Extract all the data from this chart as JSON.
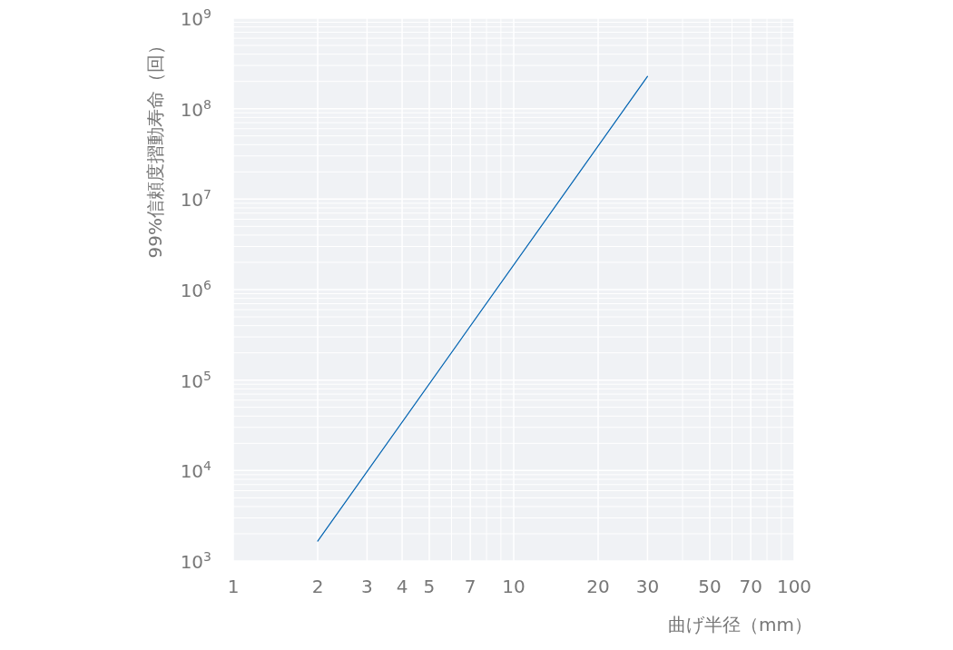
{
  "chart_data": {
    "type": "line",
    "xlabel": "曲げ半径（mm）",
    "ylabel": "99%信頼度摺動寿命（回）",
    "log": "xy",
    "grid": true,
    "marker": "none",
    "line_style": "solid",
    "x": [
      2,
      30
    ],
    "series": [
      {
        "color": "#0063b1",
        "values": [
          1660,
          227000000
        ]
      }
    ],
    "xlim": [
      1,
      100
    ],
    "xticks": [
      1,
      2,
      3,
      4,
      5,
      {
        "value": 6,
        "label": null
      },
      7,
      {
        "value": 8,
        "label": null
      },
      {
        "value": 9,
        "label": null
      },
      10,
      20,
      30,
      {
        "value": 40,
        "label": null
      },
      50,
      {
        "value": 60,
        "label": null
      },
      70,
      {
        "value": 80,
        "label": null
      },
      {
        "value": 90,
        "label": null
      },
      100
    ],
    "ylim": [
      1000,
      1000000000
    ],
    "yticks": [
      {
        "value": 1000,
        "label": "10$^{3}$"
      },
      {
        "value": 2000,
        "label": null
      },
      {
        "value": 3000,
        "label": null
      },
      {
        "value": 4000,
        "label": null
      },
      {
        "value": 5000,
        "label": null
      },
      {
        "value": 6000,
        "label": null
      },
      {
        "value": 7000,
        "label": null
      },
      {
        "value": 8000,
        "label": null
      },
      {
        "value": 9000,
        "label": null
      },
      {
        "value": 10000,
        "label": "10$^{4}$"
      },
      {
        "value": 20000,
        "label": null
      },
      {
        "value": 30000,
        "label": null
      },
      {
        "value": 40000,
        "label": null
      },
      {
        "value": 50000,
        "label": null
      },
      {
        "value": 60000,
        "label": null
      },
      {
        "value": 70000,
        "label": null
      },
      {
        "value": 80000,
        "label": null
      },
      {
        "value": 90000,
        "label": null
      },
      {
        "value": 100000,
        "label": "10$^{5}$"
      },
      {
        "value": 200000,
        "label": null
      },
      {
        "value": 300000,
        "label": null
      },
      {
        "value": 400000,
        "label": null
      },
      {
        "value": 500000,
        "label": null
      },
      {
        "value": 600000,
        "label": null
      },
      {
        "value": 700000,
        "label": null
      },
      {
        "value": 800000,
        "label": null
      },
      {
        "value": 900000,
        "label": null
      },
      {
        "value": 1000000,
        "label": "10$^{6}$"
      },
      {
        "value": 2000000,
        "label": null
      },
      {
        "value": 3000000,
        "label": null
      },
      {
        "value": 4000000,
        "label": null
      },
      {
        "value": 5000000,
        "label": null
      },
      {
        "value": 6000000,
        "label": null
      },
      {
        "value": 7000000,
        "label": null
      },
      {
        "value": 8000000,
        "label": null
      },
      {
        "value": 9000000,
        "label": null
      },
      {
        "value": 10000000,
        "label": "10$^{7}$"
      },
      {
        "value": 20000000,
        "label": null
      },
      {
        "value": 30000000,
        "label": null
      },
      {
        "value": 40000000,
        "label": null
      },
      {
        "value": 50000000,
        "label": null
      },
      {
        "value": 60000000,
        "label": null
      },
      {
        "value": 70000000,
        "label": null
      },
      {
        "value": 80000000,
        "label": null
      },
      {
        "value": 90000000,
        "label": null
      },
      {
        "value": 100000000,
        "label": "10$^{8}$"
      },
      {
        "value": 200000000,
        "label": null
      },
      {
        "value": 300000000,
        "label": null
      },
      {
        "value": 400000000,
        "label": null
      },
      {
        "value": 500000000,
        "label": null
      },
      {
        "value": 600000000,
        "label": null
      },
      {
        "value": 700000000,
        "label": null
      },
      {
        "value": 800000000,
        "label": null
      },
      {
        "value": 900000000,
        "label": null
      },
      {
        "value": 1000000000,
        "label": "10$^{9}$"
      }
    ]
  }
}
